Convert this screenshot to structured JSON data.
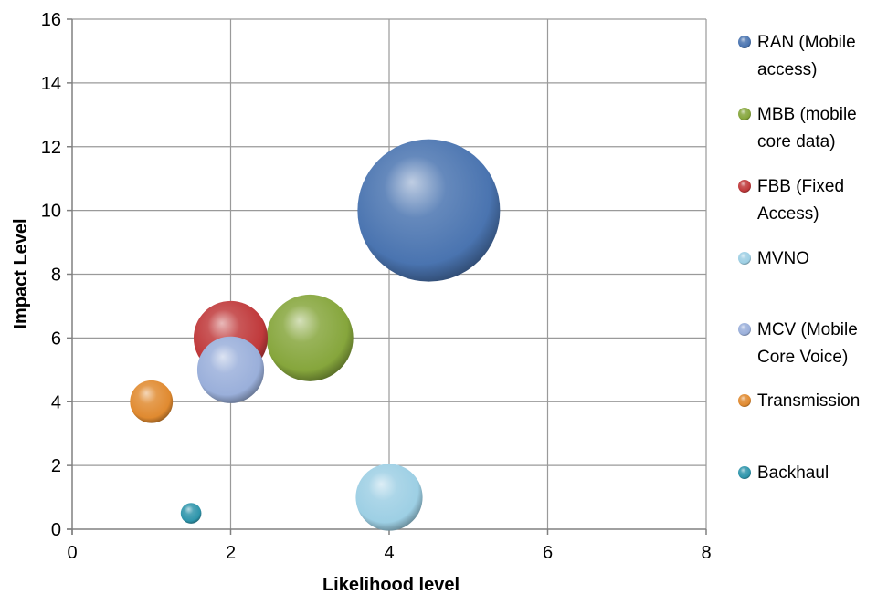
{
  "chart_data": {
    "type": "bubble",
    "title": "",
    "xlabel": "Likelihood level",
    "ylabel": "Impact Level",
    "xlim": [
      0,
      8
    ],
    "ylim": [
      0,
      16
    ],
    "xticks": [
      0,
      2,
      4,
      6,
      8
    ],
    "yticks": [
      0,
      2,
      4,
      6,
      8,
      10,
      12,
      14,
      16
    ],
    "grid": true,
    "legend_position": "right",
    "series": [
      {
        "name": "RAN (Mobile access)",
        "label_lines": [
          "RAN (Mobile",
          "access)"
        ],
        "color": "#4a74b0",
        "x": 4.5,
        "y": 10,
        "size": 100
      },
      {
        "name": "MBB (mobile core data)",
        "label_lines": [
          "MBB (mobile",
          "core data)"
        ],
        "color": "#86a63c",
        "x": 3,
        "y": 6,
        "size": 37
      },
      {
        "name": "FBB (Fixed Access)",
        "label_lines": [
          "FBB (Fixed",
          "Access)"
        ],
        "color": "#c0393b",
        "x": 2,
        "y": 6,
        "size": 27
      },
      {
        "name": "MVNO",
        "label_lines": [
          "MVNO"
        ],
        "color": "#9dcfe4",
        "x": 4,
        "y": 1,
        "size": 22
      },
      {
        "name": "MCV (Mobile Core Voice)",
        "label_lines": [
          "MCV (Mobile",
          "Core Voice)"
        ],
        "color": "#9aafda",
        "x": 2,
        "y": 5,
        "size": 22
      },
      {
        "name": "Transmission",
        "label_lines": [
          "Transmission"
        ],
        "color": "#e08a30",
        "x": 1,
        "y": 4,
        "size": 9
      },
      {
        "name": "Backhaul",
        "label_lines": [
          "Backhaul"
        ],
        "color": "#2f95ab",
        "x": 1.5,
        "y": 0.5,
        "size": 2.1
      }
    ]
  }
}
